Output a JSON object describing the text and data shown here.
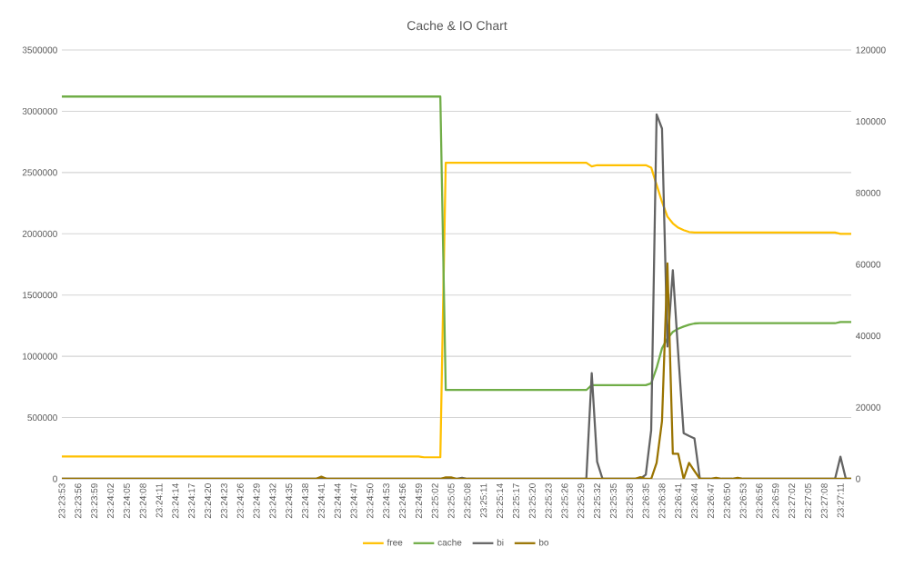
{
  "chart_data": {
    "type": "line",
    "title": "Cache & IO Chart",
    "categories": [
      "23:23:53",
      null,
      null,
      "23:23:56",
      null,
      null,
      "23:23:59",
      null,
      null,
      "23:24:02",
      null,
      null,
      "23:24:05",
      null,
      null,
      "23:24:08",
      null,
      null,
      "23:24:11",
      null,
      null,
      "23:24:14",
      null,
      null,
      "23:24:17",
      null,
      null,
      "23:24:20",
      null,
      null,
      "23:24:23",
      null,
      null,
      "23:24:26",
      null,
      null,
      "23:24:29",
      null,
      null,
      "23:24:32",
      null,
      null,
      "23:24:35",
      null,
      null,
      "23:24:38",
      null,
      null,
      "23:24:41",
      null,
      null,
      "23:24:44",
      null,
      null,
      "23:24:47",
      null,
      null,
      "23:24:50",
      null,
      null,
      "23:24:53",
      null,
      null,
      "23:24:56",
      null,
      null,
      "23:24:59",
      null,
      null,
      "23:25:02",
      null,
      null,
      "23:25:05",
      null,
      null,
      "23:25:08",
      null,
      null,
      "23:25:11",
      null,
      null,
      "23:25:14",
      null,
      null,
      "23:25:17",
      null,
      null,
      "23:25:20",
      null,
      null,
      "23:25:23",
      null,
      null,
      "23:25:26",
      null,
      null,
      "23:25:29",
      null,
      null,
      "23:25:32",
      null,
      null,
      "23:25:35",
      null,
      null,
      "23:25:38",
      null,
      null,
      "23:26:35",
      null,
      null,
      "23:26:38",
      null,
      null,
      "23:26:41",
      null,
      null,
      "23:26:44",
      null,
      null,
      "23:26:47",
      null,
      null,
      "23:26:50",
      null,
      null,
      "23:26:53",
      null,
      null,
      "23:26:56",
      null,
      null,
      "23:26:59",
      null,
      null,
      "23:27:02",
      null,
      null,
      "23:27:05",
      null,
      null,
      "23:27:08",
      null,
      null,
      "23:27:11",
      null,
      null
    ],
    "series": [
      {
        "name": "free",
        "color": "#ffc000",
        "values": [
          183000,
          183000,
          183000,
          183000,
          183000,
          183000,
          183000,
          183000,
          183000,
          183000,
          183000,
          183000,
          183000,
          183000,
          183000,
          183000,
          183000,
          183000,
          183000,
          183000,
          183000,
          183000,
          183000,
          183000,
          183000,
          183000,
          183000,
          183000,
          183000,
          183000,
          183000,
          183000,
          183000,
          183000,
          183000,
          183000,
          183000,
          183000,
          183000,
          183000,
          183000,
          183000,
          183000,
          183000,
          183000,
          183000,
          183000,
          183000,
          183000,
          183000,
          183000,
          183000,
          183000,
          183000,
          183000,
          183000,
          183000,
          183000,
          183000,
          183000,
          183000,
          183000,
          183000,
          183000,
          183000,
          183000,
          183000,
          176000,
          176000,
          176000,
          176000,
          2580000,
          2580000,
          2580000,
          2580000,
          2580000,
          2580000,
          2580000,
          2580000,
          2580000,
          2580000,
          2580000,
          2580000,
          2580000,
          2580000,
          2580000,
          2580000,
          2580000,
          2580000,
          2580000,
          2580000,
          2580000,
          2580000,
          2580000,
          2580000,
          2580000,
          2580000,
          2580000,
          2550000,
          2560000,
          2560000,
          2560000,
          2560000,
          2560000,
          2560000,
          2560000,
          2560000,
          2560000,
          2560000,
          2540000,
          2400000,
          2260000,
          2140000,
          2085000,
          2050000,
          2030000,
          2015000,
          2010000,
          2010000,
          2010000,
          2010000,
          2010000,
          2010000,
          2010000,
          2010000,
          2010000,
          2010000,
          2010000,
          2010000,
          2010000,
          2010000,
          2010000,
          2010000,
          2010000,
          2010000,
          2010000,
          2010000,
          2010000,
          2010000,
          2010000,
          2010000,
          2010000,
          2010000,
          2010000,
          2000000,
          2000000,
          2000000
        ]
      },
      {
        "name": "cache",
        "color": "#70ad47",
        "values": [
          3120000,
          3120000,
          3120000,
          3120000,
          3120000,
          3120000,
          3120000,
          3120000,
          3120000,
          3120000,
          3120000,
          3120000,
          3120000,
          3120000,
          3120000,
          3120000,
          3120000,
          3120000,
          3120000,
          3120000,
          3120000,
          3120000,
          3120000,
          3120000,
          3120000,
          3120000,
          3120000,
          3120000,
          3120000,
          3120000,
          3120000,
          3120000,
          3120000,
          3120000,
          3120000,
          3120000,
          3120000,
          3120000,
          3120000,
          3120000,
          3120000,
          3120000,
          3120000,
          3120000,
          3120000,
          3120000,
          3120000,
          3120000,
          3120000,
          3120000,
          3120000,
          3120000,
          3120000,
          3120000,
          3120000,
          3120000,
          3120000,
          3120000,
          3120000,
          3120000,
          3120000,
          3120000,
          3120000,
          3120000,
          3120000,
          3120000,
          3120000,
          3120000,
          3120000,
          3120000,
          3120000,
          725000,
          725000,
          725000,
          725000,
          725000,
          725000,
          725000,
          725000,
          725000,
          725000,
          725000,
          725000,
          725000,
          725000,
          725000,
          725000,
          725000,
          725000,
          725000,
          725000,
          725000,
          725000,
          725000,
          725000,
          725000,
          725000,
          725000,
          765000,
          765000,
          765000,
          765000,
          765000,
          765000,
          765000,
          765000,
          765000,
          765000,
          765000,
          780000,
          905000,
          1065000,
          1145000,
          1200000,
          1225000,
          1243000,
          1258000,
          1268000,
          1270000,
          1270000,
          1270000,
          1270000,
          1270000,
          1270000,
          1270000,
          1270000,
          1270000,
          1270000,
          1270000,
          1270000,
          1270000,
          1270000,
          1270000,
          1270000,
          1270000,
          1270000,
          1270000,
          1270000,
          1270000,
          1270000,
          1270000,
          1270000,
          1270000,
          1270000,
          1280000,
          1280000,
          1280000
        ]
      },
      {
        "name": "bi",
        "color": "#636363",
        "axis": "y2",
        "values": [
          0,
          0,
          0,
          0,
          0,
          0,
          0,
          0,
          0,
          0,
          0,
          0,
          0,
          0,
          0,
          0,
          0,
          0,
          0,
          0,
          0,
          0,
          0,
          0,
          0,
          0,
          0,
          0,
          0,
          0,
          0,
          0,
          0,
          0,
          0,
          0,
          0,
          0,
          0,
          0,
          0,
          0,
          0,
          0,
          0,
          0,
          0,
          0,
          0,
          0,
          0,
          0,
          0,
          0,
          0,
          0,
          0,
          0,
          0,
          0,
          0,
          0,
          0,
          0,
          0,
          0,
          0,
          0,
          0,
          0,
          0,
          0,
          0,
          0,
          300,
          0,
          0,
          0,
          0,
          0,
          0,
          0,
          0,
          0,
          0,
          0,
          0,
          0,
          0,
          0,
          0,
          0,
          0,
          0,
          0,
          0,
          0,
          0,
          29600,
          4800,
          0,
          0,
          0,
          0,
          0,
          0,
          0,
          0,
          1200,
          13600,
          102000,
          98000,
          37000,
          58400,
          35000,
          12800,
          12000,
          11300,
          0,
          0,
          0,
          0,
          0,
          0,
          0,
          0,
          0,
          0,
          0,
          0,
          0,
          0,
          0,
          0,
          0,
          0,
          0,
          0,
          0,
          0,
          0,
          0,
          0,
          0,
          6200,
          0,
          0
        ]
      },
      {
        "name": "bo",
        "color": "#997300",
        "axis": "y2",
        "values": [
          0,
          0,
          0,
          0,
          0,
          0,
          0,
          0,
          0,
          0,
          0,
          0,
          0,
          0,
          0,
          0,
          0,
          0,
          0,
          0,
          0,
          0,
          0,
          0,
          0,
          0,
          0,
          0,
          0,
          0,
          0,
          0,
          0,
          0,
          0,
          0,
          0,
          0,
          0,
          0,
          0,
          0,
          0,
          0,
          0,
          0,
          0,
          0,
          600,
          0,
          0,
          0,
          0,
          0,
          0,
          0,
          0,
          0,
          0,
          0,
          0,
          0,
          0,
          0,
          0,
          0,
          0,
          0,
          0,
          0,
          0,
          400,
          400,
          0,
          0,
          0,
          0,
          0,
          0,
          0,
          0,
          0,
          0,
          0,
          0,
          0,
          0,
          0,
          0,
          0,
          0,
          0,
          0,
          0,
          0,
          0,
          0,
          0,
          0,
          0,
          0,
          0,
          0,
          0,
          0,
          0,
          0,
          500,
          0,
          0,
          4500,
          16200,
          60300,
          7000,
          7000,
          0,
          4500,
          2200,
          0,
          0,
          0,
          300,
          0,
          0,
          0,
          300,
          0,
          0,
          0,
          0,
          0,
          0,
          0,
          0,
          0,
          0,
          0,
          0,
          0,
          0,
          0,
          0,
          0,
          0,
          0,
          0,
          0
        ]
      }
    ],
    "ylim": [
      0,
      3500000
    ],
    "yticks": [
      0,
      500000,
      1000000,
      1500000,
      2000000,
      2500000,
      3000000,
      3500000
    ],
    "y2lim": [
      0,
      120000
    ],
    "y2ticks": [
      0,
      20000,
      40000,
      60000,
      80000,
      100000,
      120000
    ],
    "grid": "y",
    "legend": "bottom",
    "marker": "none",
    "line_style": "solid"
  }
}
